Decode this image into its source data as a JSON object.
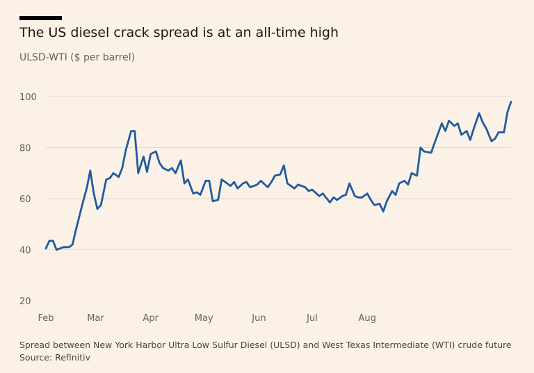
{
  "header": {
    "title": "The US diesel crack spread is at an all-time high",
    "subtitle": "ULSD-WTI ($ per barrel)"
  },
  "footer": {
    "note": "Spread between New York Harbor Ultra Low Sulfur Diesel (ULSD) and West Texas Intermediate (WTI) crude future",
    "source": "Source: Refinitiv"
  },
  "colors": {
    "line": "#1f5a9e",
    "grid": "#e6d9cc",
    "background": "#fcf1e6"
  },
  "chart_data": {
    "type": "line",
    "title": "The US diesel crack spread is at an all-time high",
    "ylabel": "ULSD-WTI ($ per barrel)",
    "xlabel": "",
    "ylim": [
      20,
      105
    ],
    "yticks": [
      20,
      40,
      60,
      80,
      100
    ],
    "xticks": [
      {
        "label": "Feb",
        "date": "2022-02-01"
      },
      {
        "label": "Mar",
        "date": "2022-03-01"
      },
      {
        "label": "Apr",
        "date": "2022-04-01"
      },
      {
        "label": "May",
        "date": "2022-05-01"
      },
      {
        "label": "Jun",
        "date": "2022-06-01"
      },
      {
        "label": "Jul",
        "date": "2022-07-01"
      },
      {
        "label": "Aug",
        "date": "2022-08-01"
      }
    ],
    "grid": "horizontal",
    "series": [
      {
        "x": [
          "2022-02-01",
          "2022-02-03",
          "2022-02-05",
          "2022-02-07",
          "2022-02-09",
          "2022-02-11",
          "2022-02-14",
          "2022-02-16",
          "2022-02-18",
          "2022-02-22",
          "2022-02-24",
          "2022-02-26",
          "2022-02-28",
          "2022-03-02",
          "2022-03-04",
          "2022-03-07",
          "2022-03-09",
          "2022-03-11",
          "2022-03-14",
          "2022-03-16",
          "2022-03-18",
          "2022-03-21",
          "2022-03-23",
          "2022-03-25",
          "2022-03-28",
          "2022-03-30",
          "2022-04-01",
          "2022-04-04",
          "2022-04-06",
          "2022-04-08",
          "2022-04-11",
          "2022-04-13",
          "2022-04-15",
          "2022-04-18",
          "2022-04-20",
          "2022-04-22",
          "2022-04-25",
          "2022-04-27",
          "2022-04-29",
          "2022-05-02",
          "2022-05-04",
          "2022-05-06",
          "2022-05-09",
          "2022-05-11",
          "2022-05-13",
          "2022-05-16",
          "2022-05-18",
          "2022-05-20",
          "2022-05-23",
          "2022-05-25",
          "2022-05-27",
          "2022-05-31",
          "2022-06-02",
          "2022-06-06",
          "2022-06-08",
          "2022-06-10",
          "2022-06-13",
          "2022-06-15",
          "2022-06-17",
          "2022-06-21",
          "2022-06-23",
          "2022-06-27",
          "2022-06-29",
          "2022-07-01",
          "2022-07-05",
          "2022-07-07",
          "2022-07-11",
          "2022-07-13",
          "2022-07-15",
          "2022-07-18",
          "2022-07-20",
          "2022-07-22",
          "2022-07-25",
          "2022-07-27",
          "2022-07-29",
          "2022-08-01",
          "2022-08-03",
          "2022-08-05",
          "2022-08-08",
          "2022-08-10",
          "2022-08-12",
          "2022-08-15",
          "2022-08-17",
          "2022-08-19",
          "2022-08-22",
          "2022-08-24",
          "2022-08-26",
          "2022-08-29",
          "2022-08-31",
          "2022-09-02",
          "2022-09-06",
          "2022-09-08",
          "2022-09-12",
          "2022-09-14",
          "2022-09-16",
          "2022-09-19",
          "2022-09-21",
          "2022-09-23",
          "2022-09-26",
          "2022-09-28",
          "2022-09-30",
          "2022-10-03",
          "2022-10-05",
          "2022-10-07",
          "2022-10-10",
          "2022-10-12",
          "2022-10-14",
          "2022-10-17",
          "2022-10-19",
          "2022-10-21"
        ],
        "values": [
          40.5,
          43.5,
          43.5,
          40,
          40.5,
          41,
          41,
          42,
          48,
          59,
          64,
          71,
          62,
          56,
          57.5,
          67.5,
          68,
          70,
          68.5,
          72,
          79,
          86.5,
          86.5,
          70,
          76.5,
          70.5,
          77.5,
          78.5,
          74,
          72,
          71,
          72,
          70,
          75,
          66,
          67.5,
          62,
          62.5,
          61.5,
          67,
          67,
          59,
          59.5,
          67.5,
          66.5,
          65,
          66.5,
          64,
          66,
          66.5,
          64.5,
          65.5,
          67,
          64.5,
          66.5,
          69,
          69.5,
          73,
          66,
          64,
          65.5,
          64.5,
          63,
          63.5,
          61,
          62,
          58.5,
          60.5,
          59.5,
          61,
          61.5,
          66,
          61,
          60.5,
          60.5,
          62,
          59.5,
          57.5,
          58,
          55,
          59,
          63,
          61.5,
          66,
          67,
          65.5,
          70,
          69,
          80,
          78.5,
          78,
          82,
          89.5,
          86.5,
          90.5,
          88.5,
          89.5,
          85,
          86.5,
          83,
          87.5,
          93.5,
          90,
          87.5,
          82.5,
          83.5,
          86,
          86,
          94,
          98
        ]
      }
    ]
  }
}
